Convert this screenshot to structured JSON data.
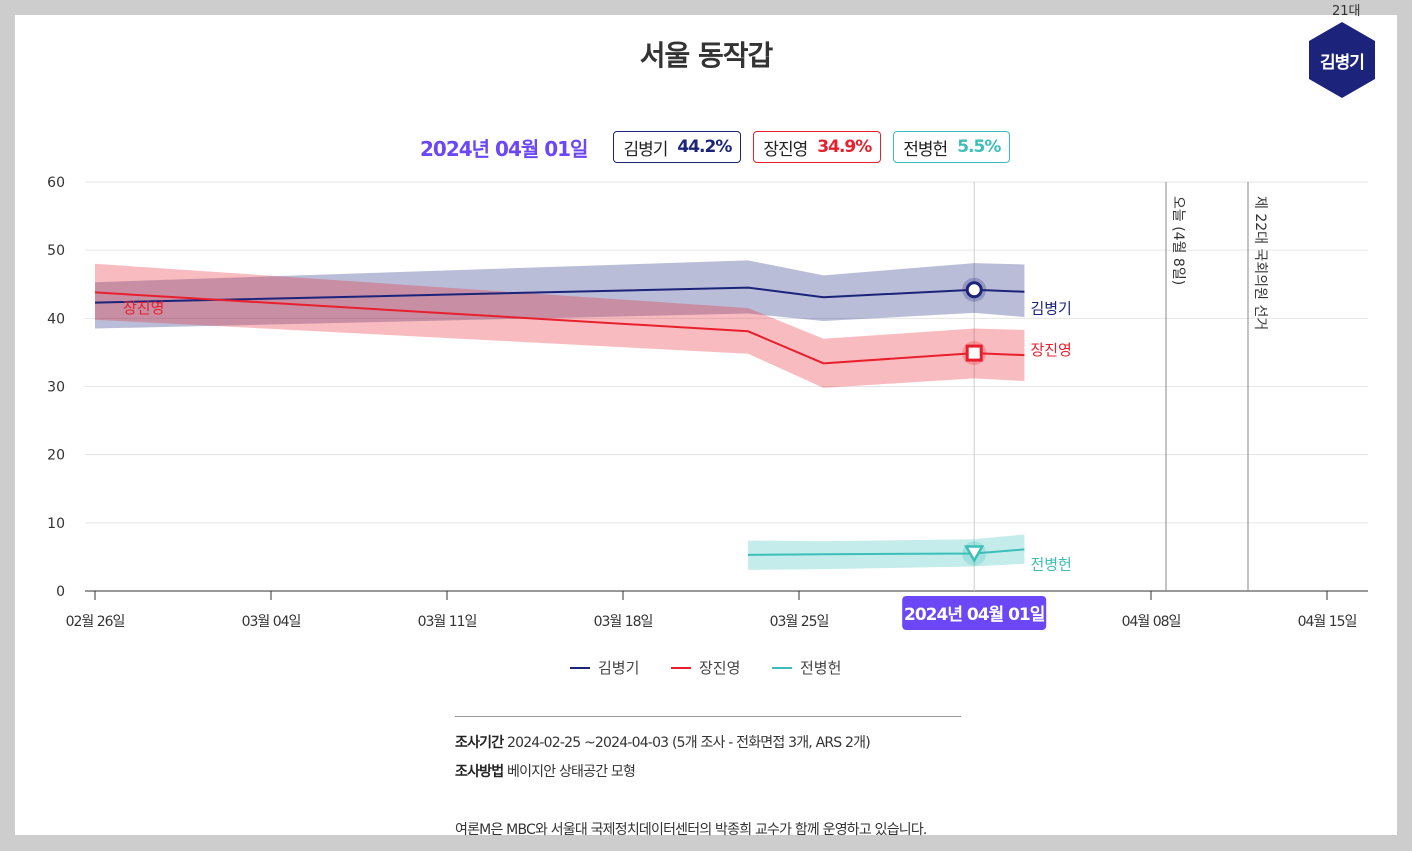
{
  "title": "서울 동작갑",
  "badge": {
    "term": "21대",
    "name": "김병기",
    "color": "#1b237a"
  },
  "current": {
    "date": "2024년 04월 01일",
    "candidates": [
      {
        "name": "김병기",
        "value": "44.2%",
        "color": "#1b237a"
      },
      {
        "name": "장진영",
        "value": "34.9%",
        "color": "#e8202d"
      },
      {
        "name": "전병헌",
        "value": "5.5%",
        "color": "#3cbfb9"
      }
    ]
  },
  "chart_data": {
    "type": "line",
    "ylim": [
      0,
      60
    ],
    "yticks": [
      0,
      10,
      20,
      30,
      40,
      50,
      60
    ],
    "xticks": [
      "02월 26일",
      "03월 04일",
      "03월 11일",
      "03월 18일",
      "03월 25일",
      "04월 08일",
      "04월 15일"
    ],
    "x": [
      "2024-02-26",
      "2024-03-23",
      "2024-03-26",
      "2024-04-01",
      "2024-04-03"
    ],
    "series": [
      {
        "name": "김병기",
        "color": "#1b237a",
        "values": [
          42.3,
          44.5,
          43.1,
          44.2,
          43.9
        ],
        "lower": [
          38.5,
          40.7,
          39.6,
          40.8,
          40.2
        ],
        "upper": [
          45.3,
          48.5,
          46.3,
          48.1,
          47.9
        ],
        "marker": "circle"
      },
      {
        "name": "장진영",
        "color": "#e8202d",
        "values": [
          43.8,
          38.1,
          33.4,
          34.9,
          34.6
        ],
        "lower": [
          39.8,
          34.8,
          29.8,
          31.2,
          30.8
        ],
        "upper": [
          48.0,
          41.5,
          37.0,
          38.5,
          38.3
        ],
        "marker": "square"
      },
      {
        "name": "전병헌",
        "color": "#3cbfb9",
        "values": [
          null,
          5.3,
          5.4,
          5.5,
          6.1
        ],
        "lower": [
          null,
          3.1,
          3.2,
          3.6,
          4.0
        ],
        "upper": [
          null,
          7.4,
          7.3,
          7.6,
          8.3
        ],
        "marker": "triangle"
      }
    ],
    "annotations": [
      "오늘 (4월 8일)",
      "제 22대 국회의원 선거"
    ],
    "hover_label": "2024년 04월 01일",
    "legend": "bottom"
  },
  "footer": {
    "period_label": "조사기간",
    "period": "2024-02-25 ~2024-04-03 (5개 조사 - 전화면접 3개, ARS 2개)",
    "method_label": "조사방법",
    "method": "베이지안 상태공간 모형",
    "note": "여론M은 MBC와 서울대 국제정치데이터센터의 박종희 교수가 함께 운영하고 있습니다."
  }
}
